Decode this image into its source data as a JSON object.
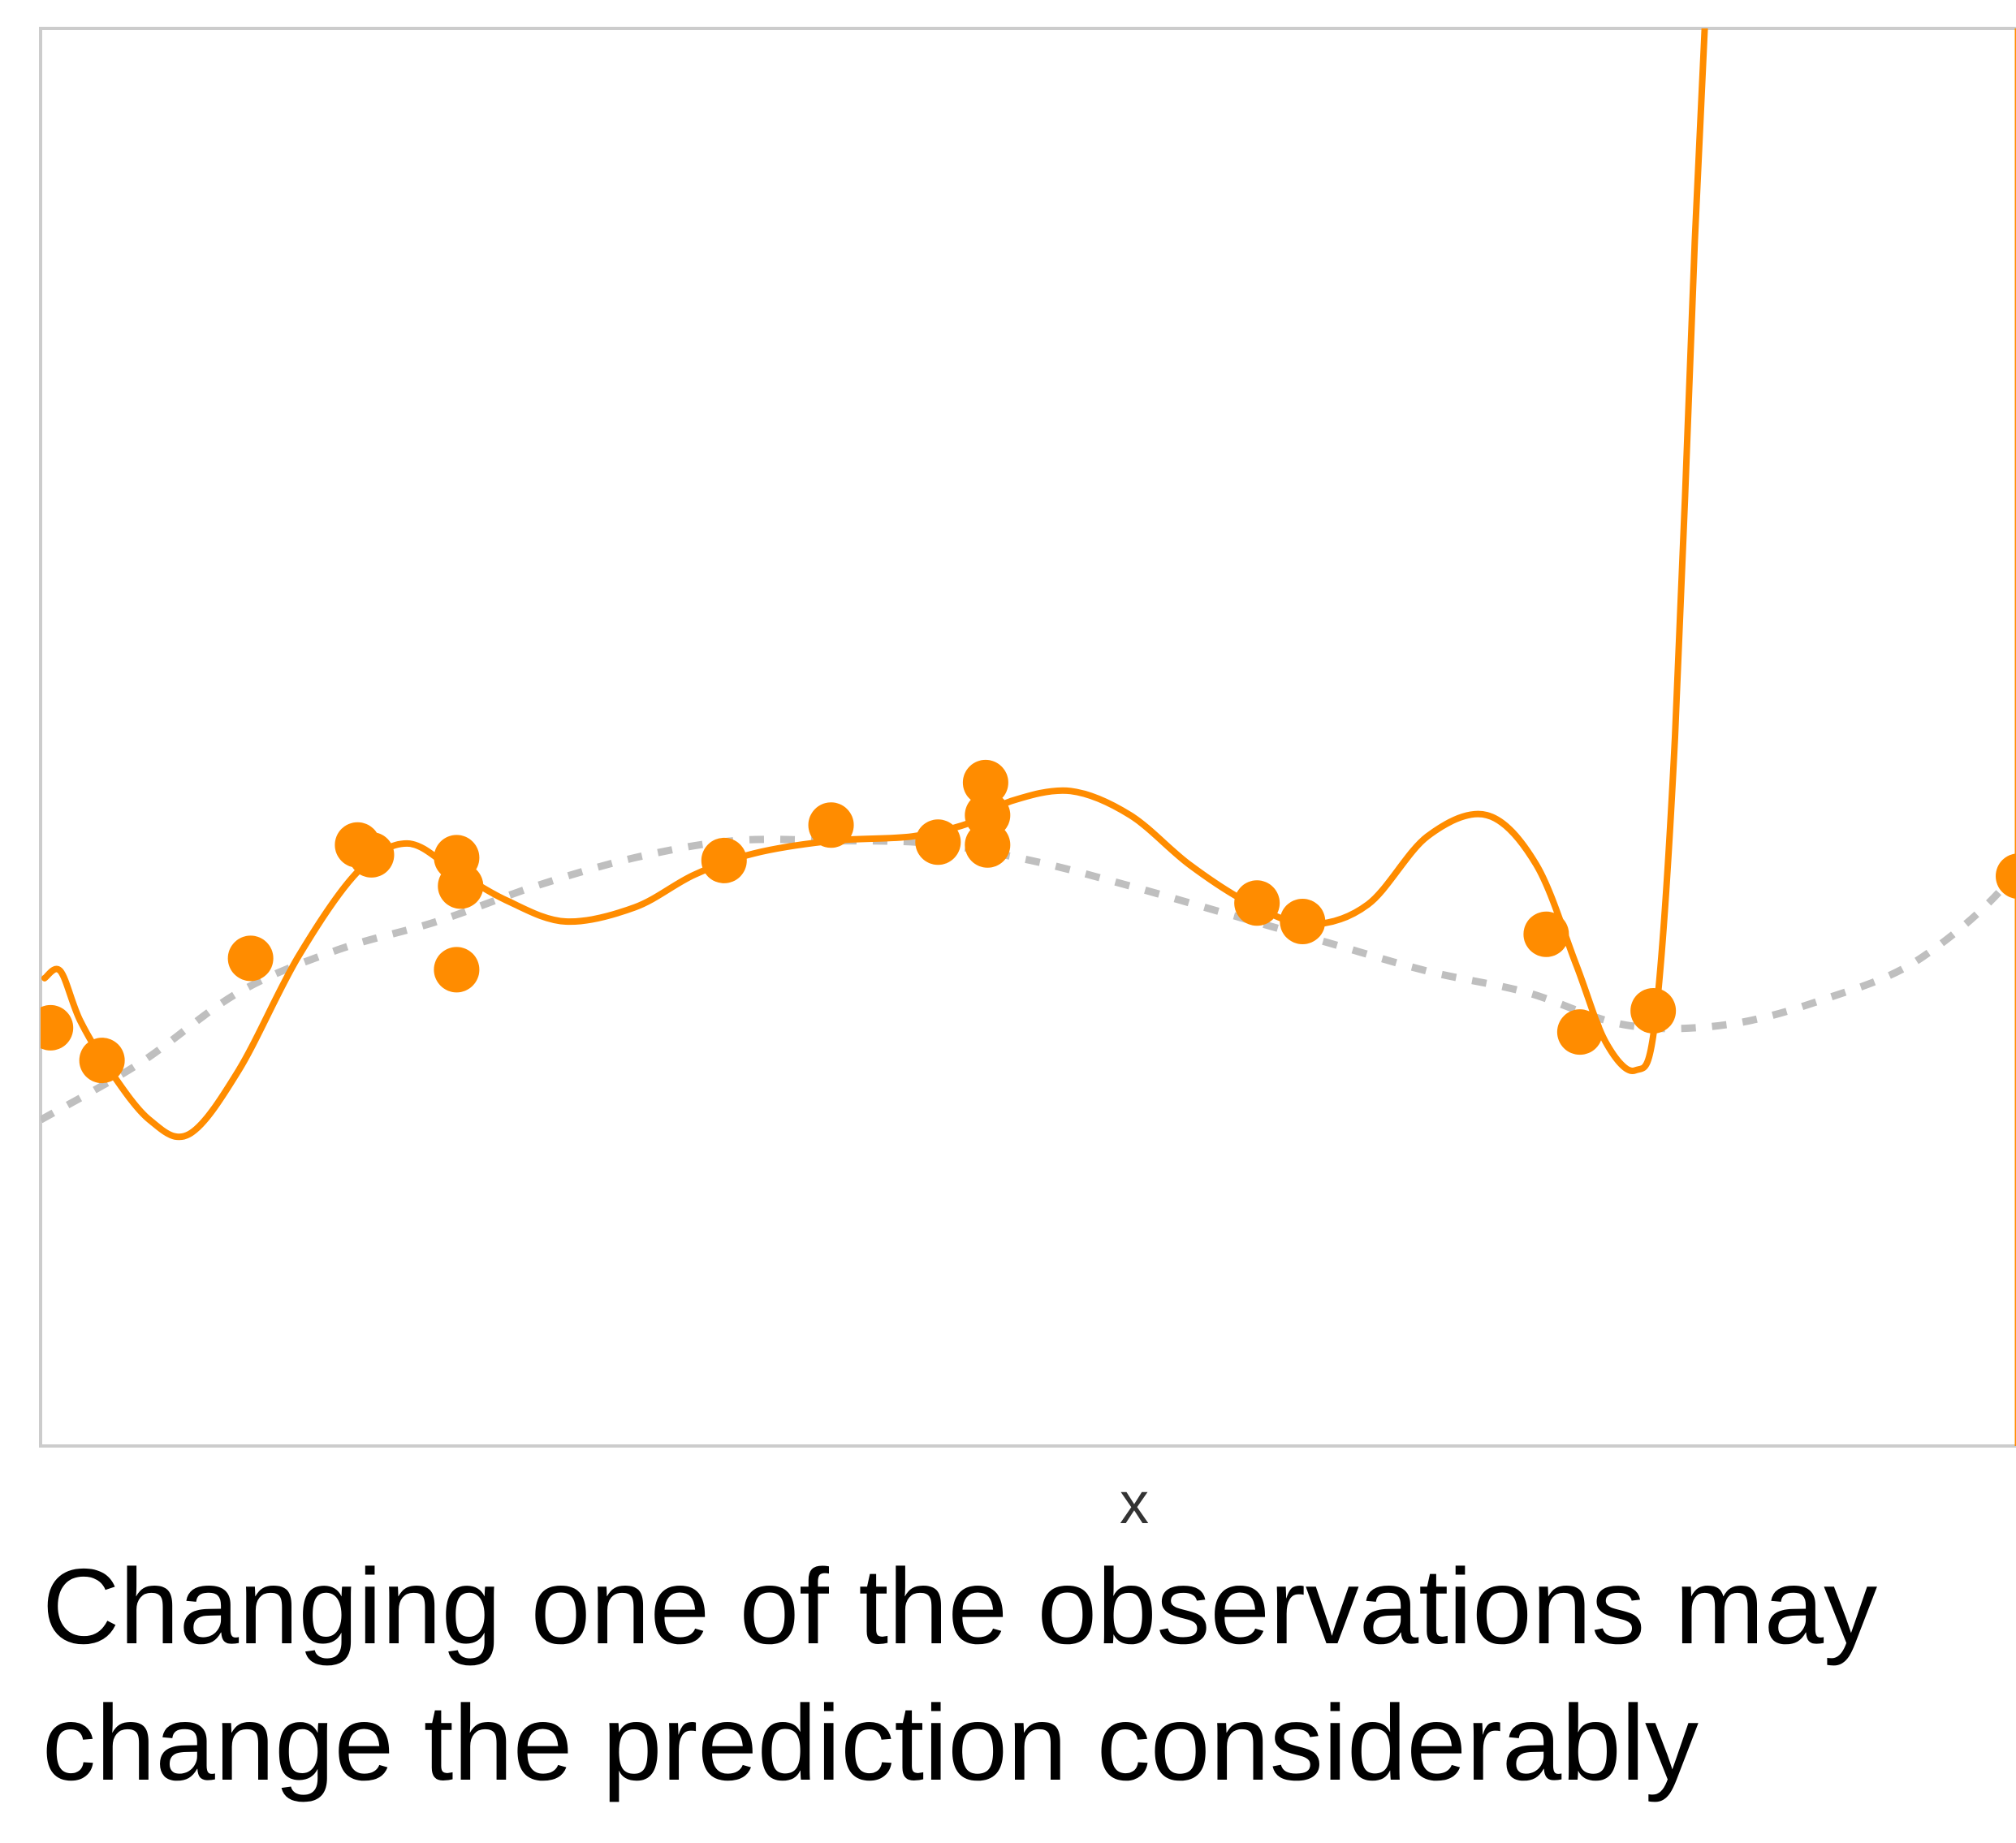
{
  "caption": {
    "line1": "Changing one of the observations may",
    "line2": "change the prediction considerably"
  },
  "colors": {
    "fit": "#ff8c00",
    "points": "#ff8c00",
    "true_curve": "#bfbfbf",
    "frame": "#cccccc",
    "text": "#000000"
  },
  "chart_data": {
    "type": "scatter",
    "title": "",
    "xlabel": "x",
    "ylabel": "",
    "xlim": [
      0,
      1
    ],
    "ylim": [
      0,
      1
    ],
    "grid": false,
    "legend": "none",
    "observations": [
      [
        0.005,
        0.295
      ],
      [
        0.031,
        0.272
      ],
      [
        0.106,
        0.344
      ],
      [
        0.16,
        0.424
      ],
      [
        0.167,
        0.417
      ],
      [
        0.21,
        0.415
      ],
      [
        0.212,
        0.395
      ],
      [
        0.21,
        0.336
      ],
      [
        0.345,
        0.413
      ],
      [
        0.399,
        0.438
      ],
      [
        0.453,
        0.426
      ],
      [
        0.477,
        0.468
      ],
      [
        0.478,
        0.445
      ],
      [
        0.478,
        0.424
      ],
      [
        0.614,
        0.383
      ],
      [
        0.637,
        0.37
      ],
      [
        0.76,
        0.361
      ],
      [
        0.777,
        0.292
      ],
      [
        0.814,
        0.307
      ],
      [
        1.0,
        0.402
      ]
    ],
    "polynomial_fit": [
      [
        0.002,
        0.33
      ],
      [
        0.01,
        0.335
      ],
      [
        0.02,
        0.3
      ],
      [
        0.035,
        0.265
      ],
      [
        0.055,
        0.23
      ],
      [
        0.075,
        0.22
      ],
      [
        0.1,
        0.265
      ],
      [
        0.13,
        0.345
      ],
      [
        0.16,
        0.405
      ],
      [
        0.185,
        0.425
      ],
      [
        0.21,
        0.405
      ],
      [
        0.235,
        0.385
      ],
      [
        0.265,
        0.37
      ],
      [
        0.3,
        0.38
      ],
      [
        0.33,
        0.403
      ],
      [
        0.36,
        0.418
      ],
      [
        0.4,
        0.427
      ],
      [
        0.44,
        0.43
      ],
      [
        0.47,
        0.44
      ],
      [
        0.49,
        0.455
      ],
      [
        0.52,
        0.462
      ],
      [
        0.55,
        0.445
      ],
      [
        0.58,
        0.41
      ],
      [
        0.61,
        0.383
      ],
      [
        0.64,
        0.368
      ],
      [
        0.67,
        0.382
      ],
      [
        0.7,
        0.43
      ],
      [
        0.73,
        0.445
      ],
      [
        0.755,
        0.41
      ],
      [
        0.775,
        0.34
      ],
      [
        0.79,
        0.285
      ],
      [
        0.805,
        0.265
      ],
      [
        0.815,
        0.3
      ],
      [
        0.825,
        0.5
      ],
      [
        0.835,
        0.85
      ],
      [
        0.84,
        1.0
      ]
    ],
    "fit_vertical_segment": {
      "x": 1.0,
      "y_from": 1.0,
      "y_to": 0.0
    },
    "true_function": [
      [
        0.0,
        0.23
      ],
      [
        0.05,
        0.27
      ],
      [
        0.1,
        0.32
      ],
      [
        0.15,
        0.35
      ],
      [
        0.2,
        0.37
      ],
      [
        0.25,
        0.395
      ],
      [
        0.3,
        0.415
      ],
      [
        0.35,
        0.427
      ],
      [
        0.4,
        0.427
      ],
      [
        0.45,
        0.425
      ],
      [
        0.5,
        0.413
      ],
      [
        0.55,
        0.395
      ],
      [
        0.6,
        0.375
      ],
      [
        0.65,
        0.355
      ],
      [
        0.7,
        0.335
      ],
      [
        0.75,
        0.32
      ],
      [
        0.8,
        0.297
      ],
      [
        0.85,
        0.297
      ],
      [
        0.9,
        0.315
      ],
      [
        0.95,
        0.345
      ],
      [
        1.0,
        0.41
      ],
      [
        1.03,
        0.5
      ]
    ]
  }
}
